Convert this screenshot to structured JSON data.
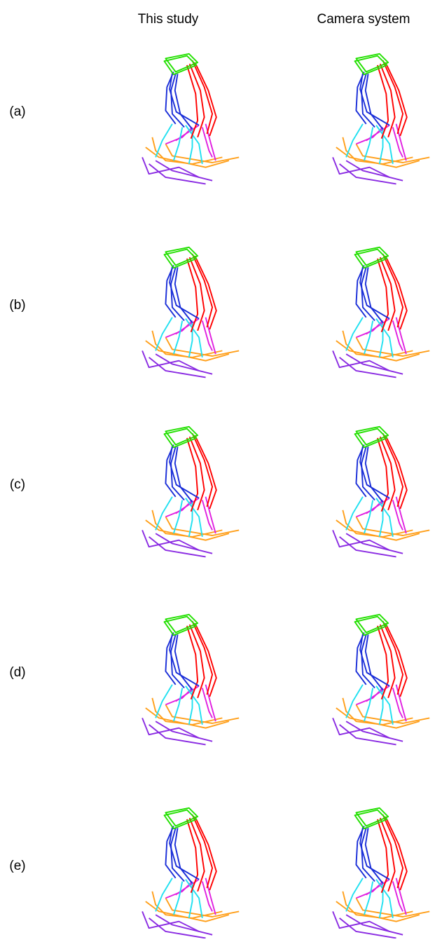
{
  "columns": [
    "This study",
    "Camera system"
  ],
  "rows": [
    "(a)",
    "(b)",
    "(c)",
    "(d)",
    "(e)"
  ]
}
